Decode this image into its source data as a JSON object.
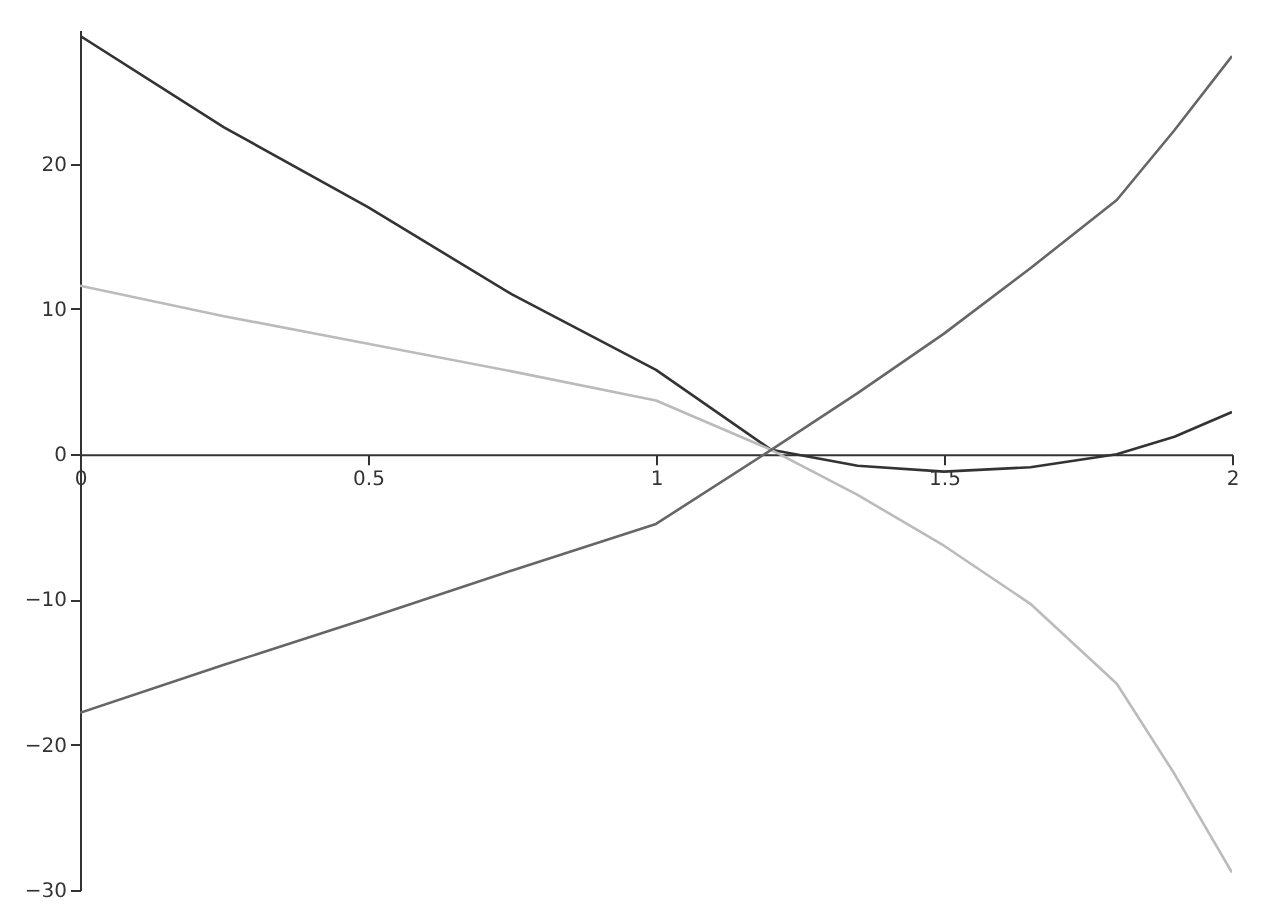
{
  "chart_data": {
    "type": "line",
    "x": [
      0,
      0.25,
      0.5,
      0.75,
      1.0,
      1.2,
      1.35,
      1.5,
      1.65,
      1.8,
      1.9,
      2.0
    ],
    "series": [
      {
        "color": "#333333",
        "values": [
          28.8,
          22.5,
          17,
          11,
          5.8,
          0.3,
          -0.8,
          -1.2,
          -0.9,
          0,
          1.2,
          2.9
        ]
      },
      {
        "color": "#bbbbbb",
        "values": [
          11.6,
          9.5,
          7.6,
          5.7,
          3.7,
          0.3,
          -2.8,
          -6.3,
          -10.3,
          -15.8,
          -22,
          -28.8
        ]
      },
      {
        "color": "#666666",
        "values": [
          -17.8,
          -14.5,
          -11.3,
          -8,
          -4.8,
          0.3,
          4.2,
          8.3,
          12.8,
          17.5,
          22.3,
          27.4
        ]
      }
    ],
    "xlim": [
      0,
      2
    ],
    "ylim": [
      -30,
      29.2
    ],
    "xticks": [
      0,
      0.5,
      1.0,
      1.5,
      2.0
    ],
    "yticks": [
      -30,
      -20,
      -10,
      0,
      10,
      20
    ],
    "marker": "none",
    "line_style": "solid"
  }
}
